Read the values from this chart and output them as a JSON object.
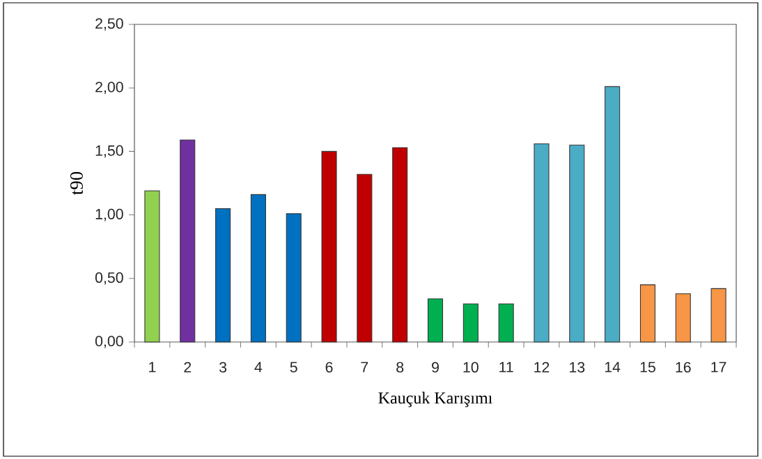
{
  "chart_data": {
    "type": "bar",
    "xlabel": "Kauçuk Karışımı",
    "ylabel": "t90",
    "categories": [
      "1",
      "2",
      "3",
      "4",
      "5",
      "6",
      "7",
      "8",
      "9",
      "10",
      "11",
      "12",
      "13",
      "14",
      "15",
      "16",
      "17"
    ],
    "values": [
      1.19,
      1.59,
      1.05,
      1.16,
      1.01,
      1.5,
      1.32,
      1.53,
      0.34,
      0.3,
      0.3,
      1.56,
      1.55,
      2.01,
      0.45,
      0.38,
      0.42
    ],
    "colors": [
      "#92d050",
      "#7030a0",
      "#0070c0",
      "#0070c0",
      "#0070c0",
      "#c00000",
      "#c00000",
      "#c00000",
      "#00b050",
      "#00b050",
      "#00b050",
      "#4bacc6",
      "#4bacc6",
      "#4bacc6",
      "#f79646",
      "#f79646",
      "#f79646"
    ],
    "ylim": [
      0,
      2.5
    ],
    "yticks": [
      {
        "value": 0,
        "label": "0,00"
      },
      {
        "value": 0.5,
        "label": "0,50"
      },
      {
        "value": 1,
        "label": "1,00"
      },
      {
        "value": 1.5,
        "label": "1,50"
      },
      {
        "value": 2,
        "label": "2,00"
      },
      {
        "value": 2.5,
        "label": "2,50"
      }
    ]
  }
}
